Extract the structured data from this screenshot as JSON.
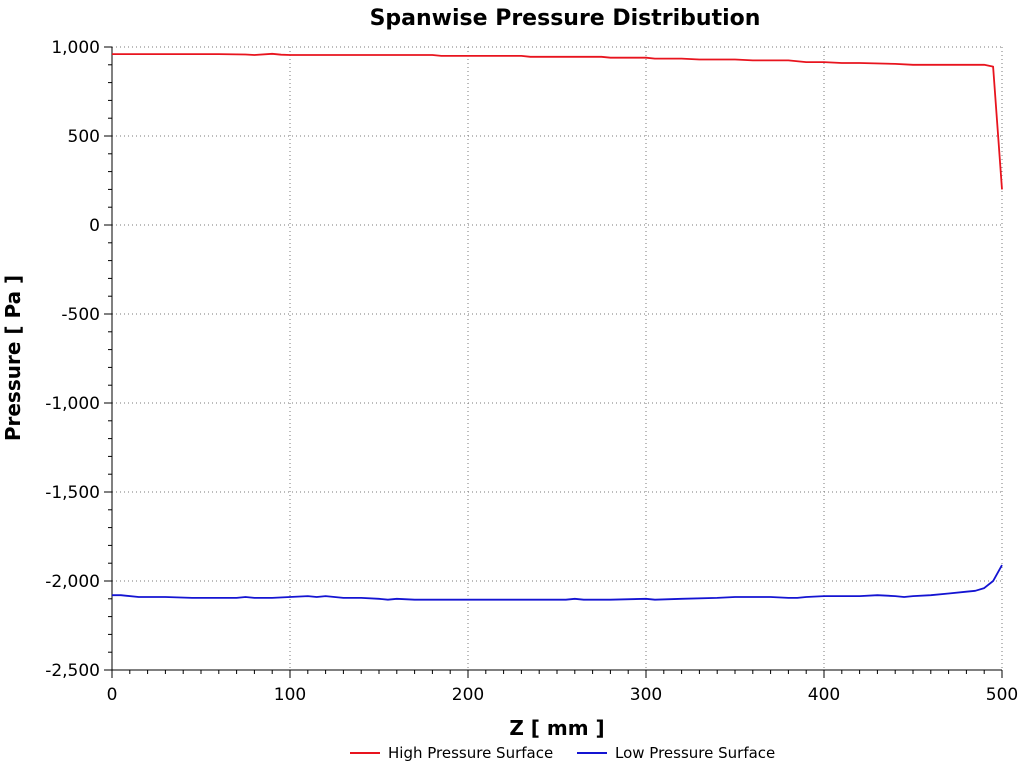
{
  "chart_data": {
    "type": "line",
    "title": "Spanwise Pressure Distribution",
    "xlabel": "Z [ mm ]",
    "ylabel": "Pressure [ Pa ]",
    "xlim": [
      0,
      500
    ],
    "ylim": [
      -2500,
      1000
    ],
    "x_ticks": [
      0,
      100,
      200,
      300,
      400,
      500
    ],
    "x_tick_labels": [
      "0",
      "100",
      "200",
      "300",
      "400",
      "500"
    ],
    "y_ticks": [
      1000,
      500,
      0,
      -500,
      -1000,
      -1500,
      -2000,
      -2500
    ],
    "y_tick_labels": [
      "1,000",
      "500",
      "0",
      "-500",
      "-1,000",
      "-1,500",
      "-2,000",
      "-2,500"
    ],
    "grid": true,
    "legend_position": "bottom",
    "series": [
      {
        "name": "High Pressure Surface",
        "color": "#e8141e",
        "x": [
          0,
          20,
          40,
          60,
          75,
          80,
          90,
          95,
          100,
          120,
          140,
          160,
          180,
          185,
          200,
          230,
          235,
          260,
          275,
          280,
          300,
          305,
          320,
          330,
          350,
          360,
          380,
          390,
          400,
          410,
          420,
          440,
          450,
          470,
          490,
          495,
          500
        ],
        "y": [
          960,
          960,
          960,
          960,
          958,
          955,
          962,
          957,
          955,
          955,
          955,
          955,
          955,
          950,
          950,
          950,
          945,
          945,
          945,
          940,
          940,
          935,
          935,
          930,
          930,
          925,
          925,
          915,
          915,
          910,
          910,
          905,
          900,
          900,
          900,
          890,
          200
        ]
      },
      {
        "name": "Low Pressure Surface",
        "color": "#1414d2",
        "x": [
          0,
          5,
          15,
          30,
          45,
          60,
          70,
          75,
          80,
          90,
          100,
          110,
          115,
          120,
          130,
          140,
          150,
          155,
          160,
          170,
          180,
          200,
          220,
          240,
          255,
          260,
          265,
          280,
          300,
          305,
          320,
          340,
          350,
          370,
          380,
          385,
          390,
          400,
          420,
          430,
          440,
          445,
          450,
          460,
          470,
          480,
          485,
          490,
          495,
          500
        ],
        "y": [
          -2080,
          -2080,
          -2090,
          -2090,
          -2095,
          -2095,
          -2095,
          -2090,
          -2095,
          -2095,
          -2090,
          -2085,
          -2090,
          -2085,
          -2095,
          -2095,
          -2100,
          -2105,
          -2100,
          -2105,
          -2105,
          -2105,
          -2105,
          -2105,
          -2105,
          -2100,
          -2105,
          -2105,
          -2100,
          -2105,
          -2100,
          -2095,
          -2090,
          -2090,
          -2095,
          -2095,
          -2090,
          -2085,
          -2085,
          -2080,
          -2085,
          -2090,
          -2085,
          -2080,
          -2070,
          -2060,
          -2055,
          -2040,
          -2000,
          -1910
        ]
      }
    ]
  }
}
